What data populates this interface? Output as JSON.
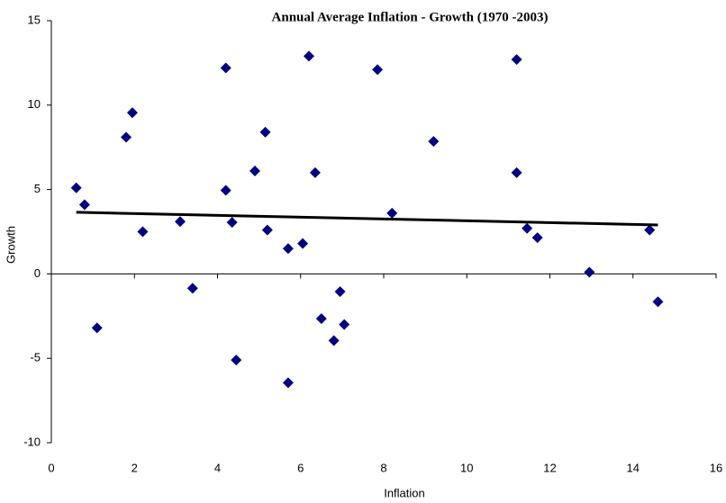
{
  "chart_data": {
    "type": "scatter",
    "title": "Annual Average Inflation - Growth  (1970 -2003)",
    "x_label": "Inflation",
    "y_label": "Growth",
    "xlim": [
      0,
      16
    ],
    "xticks": [
      0,
      2,
      4,
      6,
      8,
      10,
      12,
      14,
      16
    ],
    "ylim": [
      -10,
      15
    ],
    "yticks": [
      -10,
      -5,
      0,
      5,
      10,
      15
    ],
    "grid": false,
    "series": [
      {
        "color": "#000080",
        "x": [
          0.6,
          0.8,
          1.1,
          1.8,
          1.95,
          2.2,
          3.1,
          3.4,
          4.2,
          4.2,
          4.35,
          4.45,
          4.9,
          5.15,
          5.2,
          5.7,
          5.7,
          6.05,
          6.2,
          6.35,
          6.5,
          6.8,
          6.95,
          7.05,
          7.85,
          8.2,
          9.2,
          11.2,
          11.2,
          11.45,
          11.7,
          12.95,
          14.4,
          14.6
        ],
        "values": [
          5.1,
          4.1,
          -3.2,
          8.1,
          9.55,
          2.5,
          3.1,
          -0.85,
          12.2,
          4.95,
          3.05,
          -5.1,
          6.1,
          8.4,
          2.6,
          1.5,
          -6.45,
          1.8,
          12.9,
          6.0,
          -2.65,
          -3.95,
          -1.05,
          -3.0,
          12.1,
          3.6,
          7.85,
          12.7,
          6.0,
          2.7,
          2.15,
          0.1,
          2.6,
          -1.65
        ]
      }
    ],
    "trendline": {
      "color": "#000000",
      "x": [
        0.6,
        14.6
      ],
      "values": [
        3.65,
        2.9
      ]
    }
  }
}
